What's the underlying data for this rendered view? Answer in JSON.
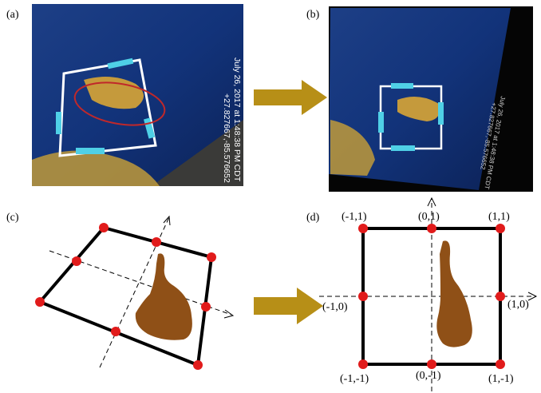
{
  "panels": [
    {
      "label": "(a)"
    },
    {
      "label": "(b)"
    },
    {
      "label": "(c)"
    },
    {
      "label": "(d)"
    }
  ],
  "photo": {
    "timestamp": "July 26, 2017 at 1:48:38 PM CDT",
    "coordinates": "+27.827667,-85.576652"
  },
  "grid_labels": [
    "(-1,1)",
    "(0,1)",
    "(1,1)",
    "(-1,0)",
    "(1,0)",
    "(-1,-1)",
    "(0,-1)",
    "(1,-1)"
  ]
}
